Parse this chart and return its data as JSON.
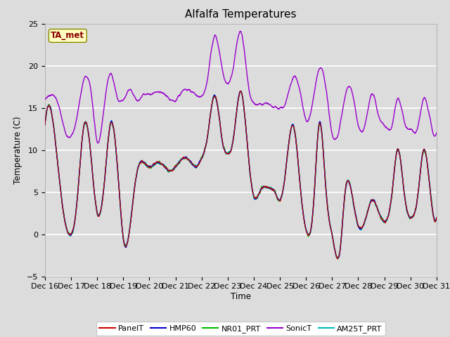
{
  "title": "Alfalfa Temperatures",
  "xlabel": "Time",
  "ylabel": "Temperature (C)",
  "ylim": [
    -5,
    25
  ],
  "xlim": [
    0,
    15
  ],
  "xtick_labels": [
    "Dec 16",
    "Dec 17",
    "Dec 18",
    "Dec 19",
    "Dec 20",
    "Dec 21",
    "Dec 22",
    "Dec 23",
    "Dec 24",
    "Dec 25",
    "Dec 26",
    "Dec 27",
    "Dec 28",
    "Dec 29",
    "Dec 30",
    "Dec 31"
  ],
  "ytick_vals": [
    -5,
    0,
    5,
    10,
    15,
    20,
    25
  ],
  "annotation_text": "TA_met",
  "annotation_color": "#8B0000",
  "annotation_bg": "#FFFFC0",
  "legend_colors": {
    "PanelT": "#CC0000",
    "HMP60": "#0000CC",
    "NR01_PRT": "#00BB00",
    "SonicT": "#9900CC",
    "AM25T_PRT": "#00BBBB"
  },
  "bg_color": "#DCDCDC",
  "plot_bg": "#DCDCDC",
  "grid_color": "white"
}
